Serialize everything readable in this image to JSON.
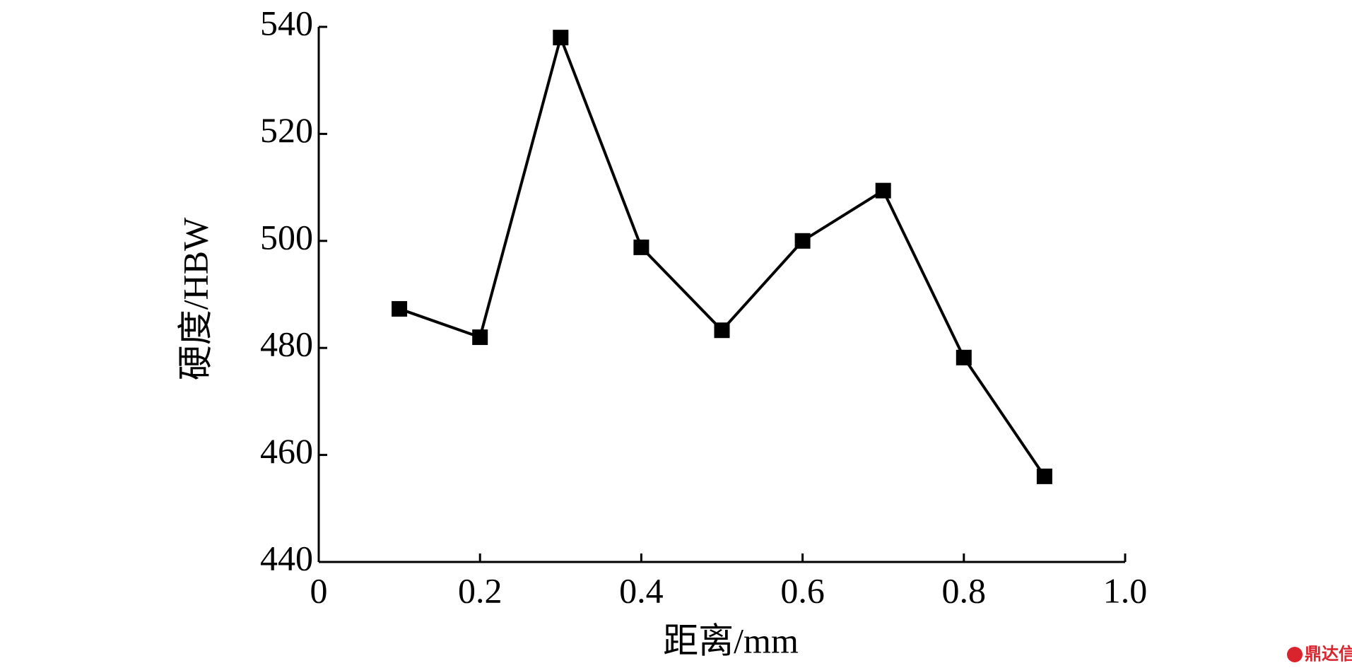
{
  "chart_data": {
    "type": "line",
    "x_label": "距离/mm",
    "y_label": "硬度/HBW",
    "x": [
      0.1,
      0.2,
      0.3,
      0.4,
      0.5,
      0.6,
      0.7,
      0.8,
      0.9
    ],
    "values": [
      487.3,
      482,
      538,
      498.8,
      483.3,
      500,
      509.4,
      478.2,
      456
    ],
    "color": "#000000",
    "xlim": [
      0,
      1
    ],
    "xticks": [
      0,
      0.2,
      0.4,
      0.6,
      0.8,
      {
        "value": 1,
        "label": "1.0"
      }
    ],
    "ylim": [
      440,
      540
    ],
    "yticks": [
      440,
      460,
      480,
      500,
      520,
      540
    ],
    "grid": false
  },
  "watermark": "鼎达信"
}
